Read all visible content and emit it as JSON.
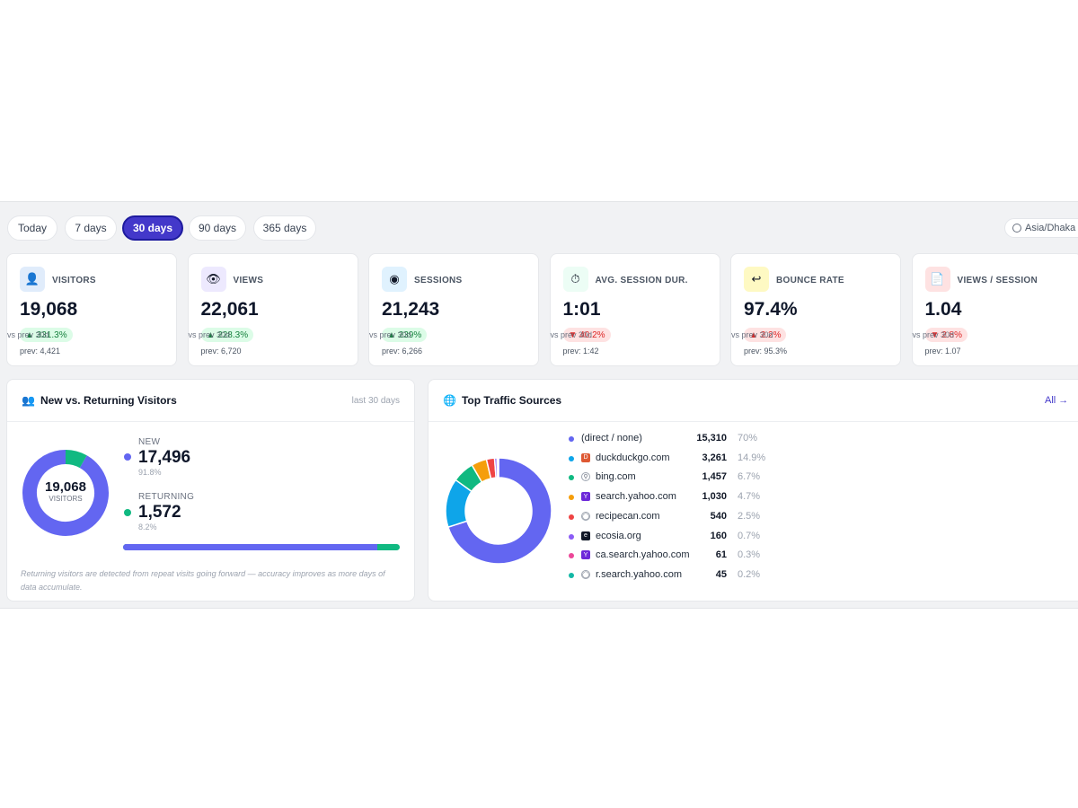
{
  "ranges": [
    {
      "label": "Today",
      "active": false
    },
    {
      "label": "7 days",
      "active": false
    },
    {
      "label": "30 days",
      "active": true
    },
    {
      "label": "90 days",
      "active": false
    },
    {
      "label": "365 days",
      "active": false
    }
  ],
  "timezone": "Asia/Dhaka",
  "stats": [
    {
      "label": "VISITORS",
      "value": "19,068",
      "change": "▲ 331.3%",
      "direction": "up",
      "compare": "vs prev 30d",
      "prev_label": "prev:",
      "prev": "4,421",
      "icon": "user-icon",
      "icon_bg": "#e0ecfb"
    },
    {
      "label": "VIEWS",
      "value": "22,061",
      "change": "▲ 228.3%",
      "direction": "up",
      "compare": "vs prev 30d",
      "prev_label": "prev:",
      "prev": "6,720",
      "icon": "eye-icon",
      "icon_bg": "#ede9fe"
    },
    {
      "label": "SESSIONS",
      "value": "21,243",
      "change": "▲ 239%",
      "direction": "up",
      "compare": "vs prev 30d",
      "prev_label": "prev:",
      "prev": "6,266",
      "icon": "sessions-icon",
      "icon_bg": "#e0f2fe"
    },
    {
      "label": "AVG. SESSION DUR.",
      "value": "1:01",
      "change": "▼ 40.2%",
      "direction": "down",
      "compare": "vs prev 30d",
      "prev_label": "prev:",
      "prev": "1:42",
      "icon": "stopwatch-icon",
      "icon_bg": "#ecfdf5"
    },
    {
      "label": "BOUNCE RATE",
      "value": "97.4%",
      "change": "▲ 2.2%",
      "direction": "down",
      "compare": "vs prev 30d",
      "prev_label": "prev:",
      "prev": "95.3%",
      "icon": "return-arrow-icon",
      "icon_bg": "#fef9c3"
    },
    {
      "label": "VIEWS / SESSION",
      "value": "1.04",
      "change": "▼ 2.8%",
      "direction": "down",
      "compare": "vs prev 30d",
      "prev_label": "prev:",
      "prev": "1.07",
      "icon": "document-icon",
      "icon_bg": "#fee2e2"
    }
  ],
  "returning": {
    "title": "New vs. Returning Visitors",
    "period": "last 30 days",
    "total": "19,068",
    "total_label": "VISITORS",
    "new_label": "NEW",
    "new_value": "17,496",
    "new_pct": "91.8%",
    "new_fraction": 0.918,
    "returning_label": "RETURNING",
    "returning_value": "1,572",
    "returning_pct": "8.2%",
    "note": "Returning visitors are detected from repeat visits going forward — accuracy improves as more days of data accumulate.",
    "colors": {
      "new": "#6366f1",
      "returning": "#10b981"
    }
  },
  "sources": {
    "title": "Top Traffic Sources",
    "all_link": "All →",
    "items": [
      {
        "name": "(direct / none)",
        "count": "15,310",
        "pct": "70%",
        "value": 15310,
        "color": "#6366f1",
        "icon": "",
        "icon_bg": ""
      },
      {
        "name": "duckduckgo.com",
        "count": "3,261",
        "pct": "14.9%",
        "value": 3261,
        "color": "#0ea5e9",
        "icon": "duckduckgo-icon",
        "icon_bg": "#de5833"
      },
      {
        "name": "bing.com",
        "count": "1,457",
        "pct": "6.7%",
        "value": 1457,
        "color": "#10b981",
        "icon": "search-icon",
        "icon_bg": "#ffffff"
      },
      {
        "name": "search.yahoo.com",
        "count": "1,030",
        "pct": "4.7%",
        "value": 1030,
        "color": "#f59e0b",
        "icon": "yahoo-icon",
        "icon_bg": "#6d28d9"
      },
      {
        "name": "recipecan.com",
        "count": "540",
        "pct": "2.5%",
        "value": 540,
        "color": "#ef4444",
        "icon": "globe-icon",
        "icon_bg": "#ffffff"
      },
      {
        "name": "ecosia.org",
        "count": "160",
        "pct": "0.7%",
        "value": 160,
        "color": "#8b5cf6",
        "icon": "ecosia-icon",
        "icon_bg": "#111827"
      },
      {
        "name": "ca.search.yahoo.com",
        "count": "61",
        "pct": "0.3%",
        "value": 61,
        "color": "#ec4899",
        "icon": "yahoo-icon",
        "icon_bg": "#6d28d9"
      },
      {
        "name": "r.search.yahoo.com",
        "count": "45",
        "pct": "0.2%",
        "value": 45,
        "color": "#14b8a6",
        "icon": "globe-icon",
        "icon_bg": "#ffffff"
      }
    ]
  }
}
